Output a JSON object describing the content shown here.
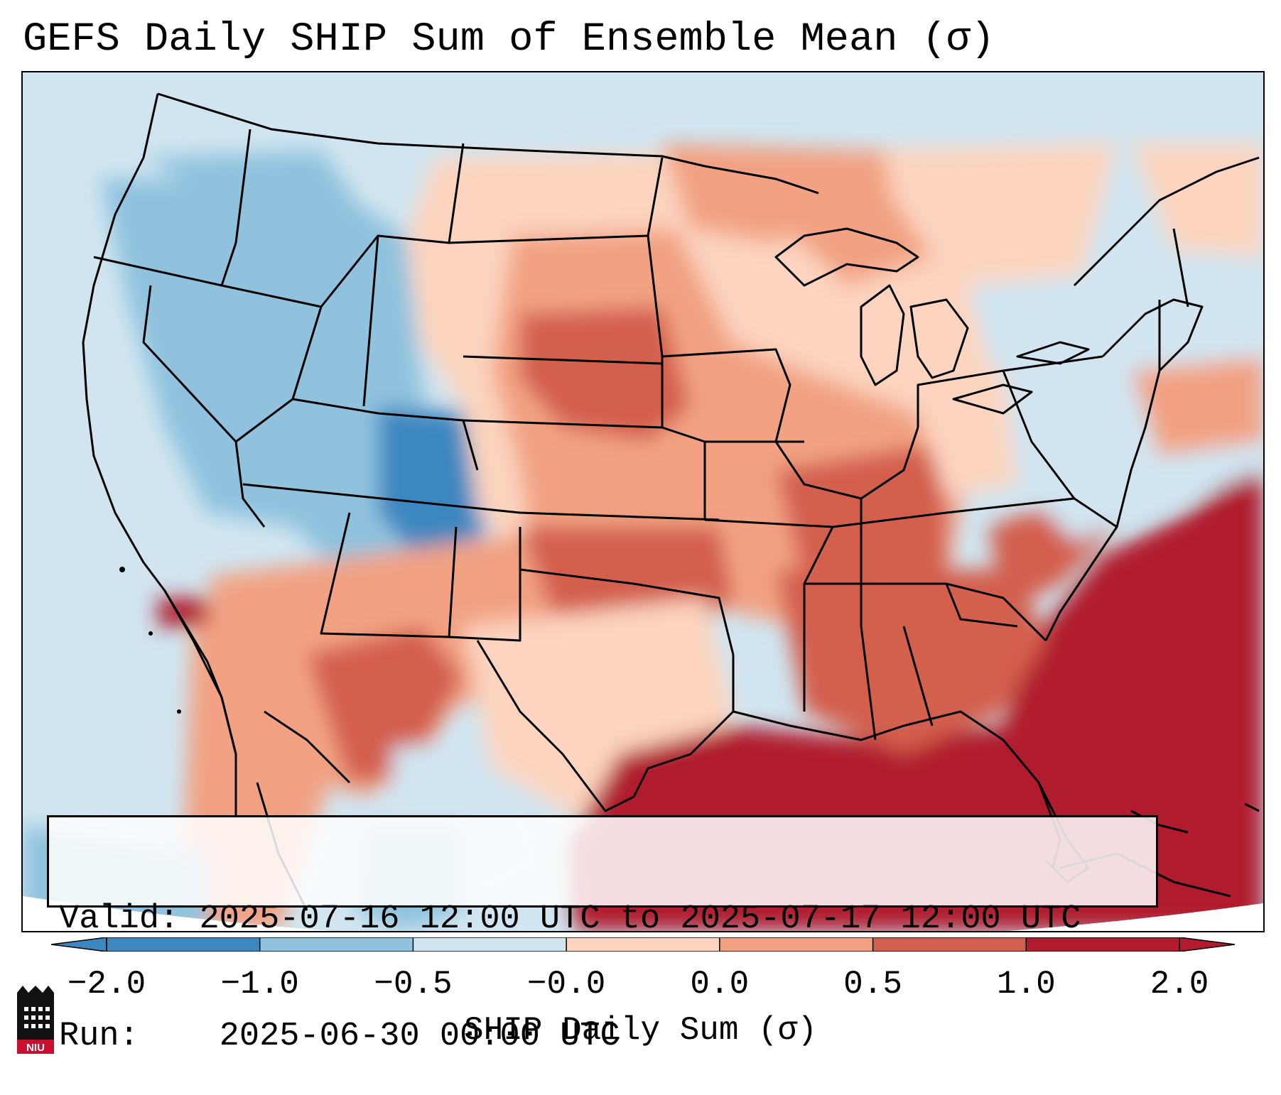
{
  "title": "GEFS Daily SHIP Sum of Ensemble Mean (σ)",
  "info": {
    "valid_label": "Valid:",
    "valid_value": "2025-07-16 12:00 UTC to 2025-07-17 12:00 UTC",
    "run_label": "Run:",
    "run_value": "2025-06-30 00:00 UTC"
  },
  "colorbar": {
    "label": "SHIP Daily Sum (σ)",
    "ticks": [
      "−2.0",
      "−1.0",
      "−0.5",
      "−0.0",
      "0.0",
      "0.5",
      "1.0",
      "2.0"
    ],
    "colors": [
      "#3d87c0",
      "#90c2de",
      "#d0e5f0",
      "#f8f8f8",
      "#fcd4bf",
      "#f2a283",
      "#d35f4e",
      "#b01c2d"
    ],
    "extend": "both"
  },
  "map": {
    "region": "Contiguous United States",
    "projection": "Lambert conformal",
    "max_anomaly_region": "Gulf of Mexico and Southeast Atlantic coast",
    "min_anomaly_region": "Intermountain West"
  },
  "logo": {
    "text": "NIU",
    "icon": "university-tower-logo-icon"
  }
}
